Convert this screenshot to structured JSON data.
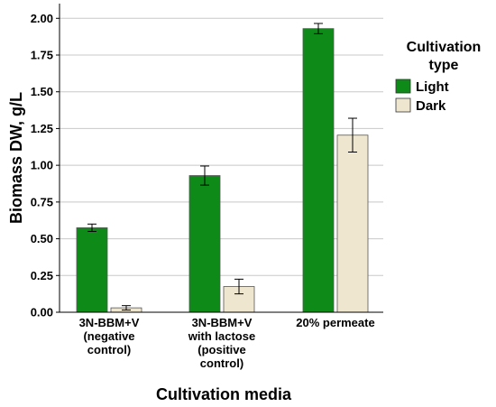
{
  "chart_data": {
    "type": "bar",
    "categories": [
      [
        "3N-BBM+V",
        "(negative",
        "control)"
      ],
      [
        "3N-BBM+V",
        "with lactose",
        "(positive",
        "control)"
      ],
      [
        "20% permeate"
      ]
    ],
    "series": [
      {
        "name": "Light",
        "color": "#0e8a18",
        "values": [
          0.575,
          0.93,
          1.93
        ],
        "errors": [
          0.025,
          0.065,
          0.035
        ]
      },
      {
        "name": "Dark",
        "color": "#efe6d0",
        "values": [
          0.03,
          0.175,
          1.205
        ],
        "errors": [
          0.015,
          0.05,
          0.115
        ]
      }
    ],
    "xlabel": "Cultivation media",
    "ylabel": "Biomass DW, g/L",
    "ylim": [
      0,
      2.1
    ],
    "yticks": [
      "0.00",
      "0.25",
      "0.50",
      "0.75",
      "1.00",
      "1.25",
      "1.50",
      "1.75",
      "2.00"
    ],
    "grid": true,
    "legend": {
      "title": [
        "Cultivation",
        "type"
      ],
      "placement": "top-right"
    }
  }
}
